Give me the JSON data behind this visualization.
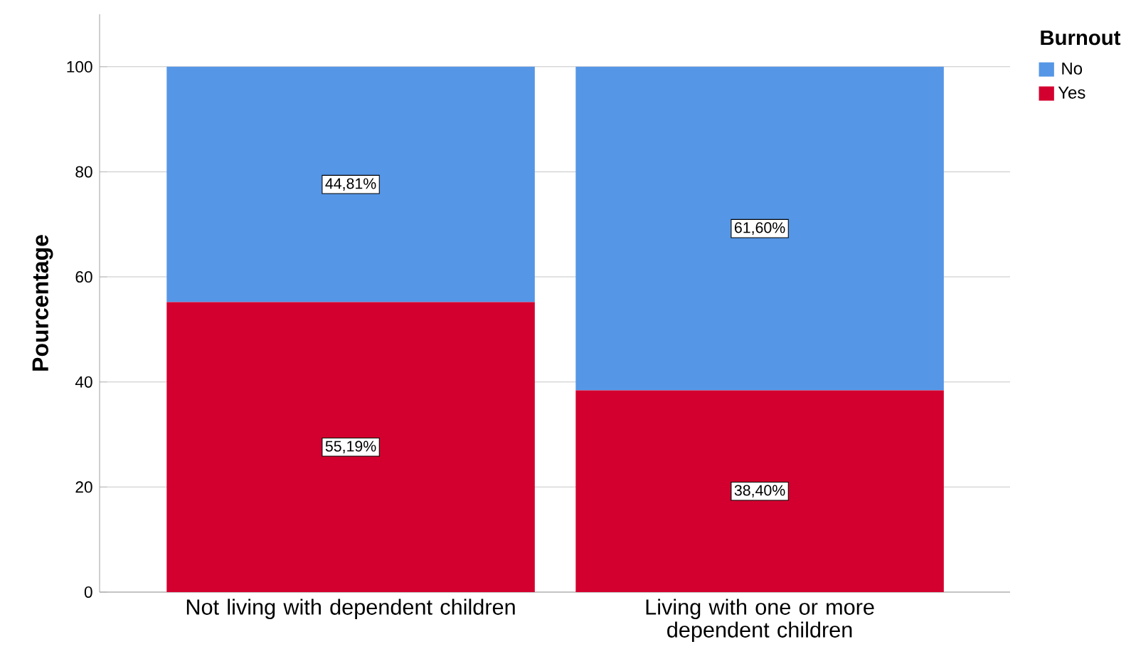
{
  "chart_data": {
    "type": "bar",
    "stacked": true,
    "ylabel": "Pourcentage",
    "legend_title": "Burnout",
    "legend": "top right",
    "categories": [
      "Not living with dependent children",
      "Living with one or more dependent children"
    ],
    "series": [
      {
        "name": "Yes",
        "color": "#d3002f",
        "values": [
          55.19,
          38.4
        ],
        "value_labels": [
          "55,19%",
          "38,40%"
        ]
      },
      {
        "name": "No",
        "color": "#5596e6",
        "values": [
          44.81,
          61.6
        ],
        "value_labels": [
          "44,81%",
          "61,60%"
        ]
      }
    ],
    "ylim": [
      0,
      110
    ],
    "yticks": [
      0,
      20,
      40,
      60,
      80,
      100
    ],
    "grid": "y"
  }
}
